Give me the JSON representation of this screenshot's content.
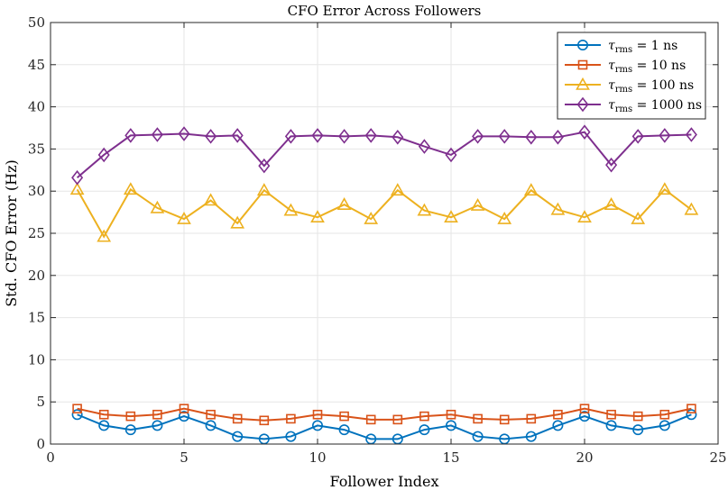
{
  "chart_data": {
    "type": "line",
    "title": "CFO Error Across Followers",
    "xlabel": "Follower Index",
    "ylabel": "Std. CFO Error (Hz)",
    "xlim": [
      0,
      25
    ],
    "ylim": [
      0,
      50
    ],
    "xticks": [
      0,
      5,
      10,
      15,
      20,
      25
    ],
    "yticks": [
      0,
      5,
      10,
      15,
      20,
      25,
      30,
      35,
      40,
      45,
      50
    ],
    "grid": true,
    "legend_position": "top-right",
    "x": [
      1,
      2,
      3,
      4,
      5,
      6,
      7,
      8,
      9,
      10,
      11,
      12,
      13,
      14,
      15,
      16,
      17,
      18,
      19,
      20,
      21,
      22,
      23,
      24
    ],
    "series": [
      {
        "name": "τrms = 1 ns",
        "sym": "τ",
        "sub": "rms",
        "rest": " = 1 ns",
        "color": "#0072BD",
        "marker": "circle",
        "values": [
          3.5,
          2.2,
          1.7,
          2.2,
          3.3,
          2.2,
          0.9,
          0.6,
          0.9,
          2.2,
          1.7,
          0.6,
          0.6,
          1.7,
          2.2,
          0.9,
          0.6,
          0.9,
          2.2,
          3.3,
          2.2,
          1.7,
          2.2,
          3.5
        ]
      },
      {
        "name": "τrms = 10 ns",
        "sym": "τ",
        "sub": "rms",
        "rest": " = 10 ns",
        "color": "#D95319",
        "marker": "square",
        "values": [
          4.2,
          3.5,
          3.3,
          3.5,
          4.2,
          3.5,
          3.0,
          2.8,
          3.0,
          3.5,
          3.3,
          2.9,
          2.9,
          3.3,
          3.5,
          3.0,
          2.9,
          3.0,
          3.5,
          4.2,
          3.5,
          3.3,
          3.5,
          4.2
        ]
      },
      {
        "name": "τrms = 100 ns",
        "sym": "τ",
        "sub": "rms",
        "rest": " = 100 ns",
        "color": "#EDB120",
        "marker": "triangle",
        "values": [
          30.2,
          24.6,
          30.2,
          28.0,
          26.7,
          28.9,
          26.2,
          30.1,
          27.7,
          26.9,
          28.4,
          26.7,
          30.1,
          27.7,
          26.9,
          28.3,
          26.7,
          30.1,
          27.8,
          26.9,
          28.4,
          26.7,
          30.2,
          27.8
        ]
      },
      {
        "name": "τrms = 1000 ns",
        "sym": "τ",
        "sub": "rms",
        "rest": " = 1000 ns",
        "color": "#7E2F8E",
        "marker": "diamond",
        "values": [
          31.6,
          34.3,
          36.6,
          36.7,
          36.8,
          36.5,
          36.6,
          33.0,
          36.5,
          36.6,
          36.5,
          36.6,
          36.4,
          35.3,
          34.3,
          36.5,
          36.5,
          36.4,
          36.4,
          37.0,
          33.1,
          36.5,
          36.6,
          36.7
        ]
      }
    ]
  }
}
